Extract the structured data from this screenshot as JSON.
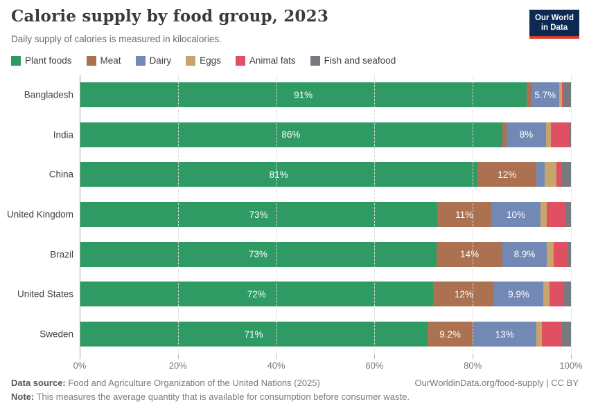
{
  "header": {
    "title": "Calorie supply by food group, 2023",
    "subtitle": "Daily supply of calories is measured in kilocalories."
  },
  "logo": {
    "line1": "Our World",
    "line2": "in Data"
  },
  "colors": {
    "plant_foods": "#2f9a64",
    "meat": "#ac7150",
    "dairy": "#7289b5",
    "eggs": "#c8a46f",
    "animal_fats": "#de5062",
    "fish_and_seafood": "#767a80",
    "logo_navy": "#0d2b52",
    "logo_red": "#dc3a2b"
  },
  "chart_data": {
    "type": "bar",
    "stacked": true,
    "orientation": "horizontal",
    "xlim": [
      0,
      100
    ],
    "grid": "dashed-vertical",
    "legend_position": "top",
    "x_ticks": [
      "0%",
      "20%",
      "40%",
      "60%",
      "80%",
      "100%"
    ],
    "categories": [
      "Bangladesh",
      "India",
      "China",
      "United Kingdom",
      "Brazil",
      "United States",
      "Sweden"
    ],
    "series": [
      {
        "name": "Plant foods",
        "color": "#2f9a64",
        "values": [
          91,
          86,
          81,
          72.8,
          72.6,
          72,
          70.8
        ],
        "labels": [
          "91%",
          "86%",
          "81%",
          "73%",
          "73%",
          "72%",
          "71%"
        ]
      },
      {
        "name": "Meat",
        "color": "#ac7150",
        "values": [
          0.9,
          0.9,
          12,
          11,
          13.5,
          12.4,
          9.2
        ],
        "labels": [
          null,
          null,
          "12%",
          "11%",
          "14%",
          "12%",
          "9.2%"
        ]
      },
      {
        "name": "Dairy",
        "color": "#7289b5",
        "values": [
          5.7,
          8,
          1.6,
          10,
          8.9,
          9.9,
          13
        ],
        "labels": [
          "5.7%",
          "8%",
          null,
          "10%",
          "8.9%",
          "9.9%",
          "13%"
        ]
      },
      {
        "name": "Eggs",
        "color": "#c8a46f",
        "values": [
          0.5,
          1.0,
          2.5,
          1.3,
          1.5,
          1.3,
          1.1
        ],
        "labels": [
          null,
          null,
          null,
          null,
          null,
          null,
          null
        ]
      },
      {
        "name": "Animal fats",
        "color": "#de5062",
        "values": [
          0.5,
          3.7,
          1.0,
          3.8,
          3.0,
          3.0,
          4.1
        ],
        "labels": [
          null,
          null,
          null,
          null,
          null,
          null,
          null
        ]
      },
      {
        "name": "Fish and seafood",
        "color": "#767a80",
        "values": [
          1.4,
          0.4,
          1.9,
          1.1,
          0.5,
          1.4,
          1.8
        ],
        "labels": [
          null,
          null,
          null,
          null,
          null,
          null,
          null
        ]
      }
    ]
  },
  "footer": {
    "datasource_label": "Data source:",
    "datasource_text": " Food and Agriculture Organization of the United Nations (2025)",
    "note_label": "Note:",
    "note_text": " This measures the average quantity that is available for consumption before consumer waste.",
    "link": "OurWorldinData.org/food-supply | CC BY"
  }
}
